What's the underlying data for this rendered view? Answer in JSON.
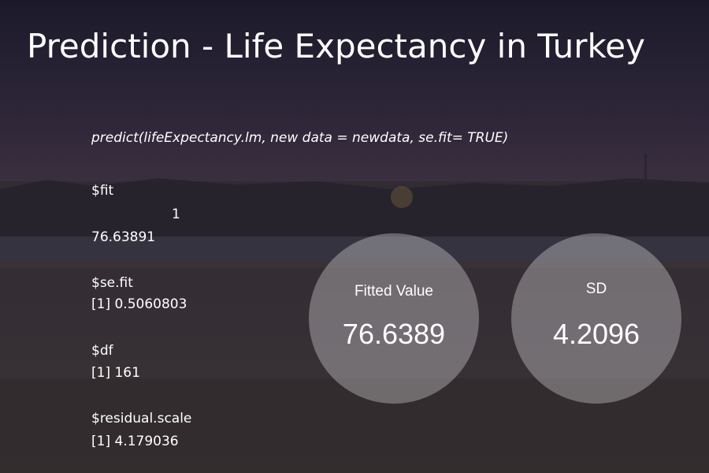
{
  "slide": {
    "title": "Prediction - Life Expectancy in Turkey",
    "code": "predict(lifeExpectancy.lm, new data = newdata, se.fit= TRUE)"
  },
  "output": {
    "fit_label": "$fit",
    "fit_index": "1",
    "fit_value": "76.63891",
    "se_fit_label": "$se.fit",
    "se_fit_value": "[1] 0.5060803",
    "df_label": "$df",
    "df_value": "[1] 161",
    "residual_scale_label": "$residual.scale",
    "residual_scale_value": "[1] 4.179036"
  },
  "circles": {
    "fitted": {
      "label": "Fitted Value",
      "value": "76.6389"
    },
    "sd": {
      "label": "SD",
      "value": "4.2096"
    }
  }
}
